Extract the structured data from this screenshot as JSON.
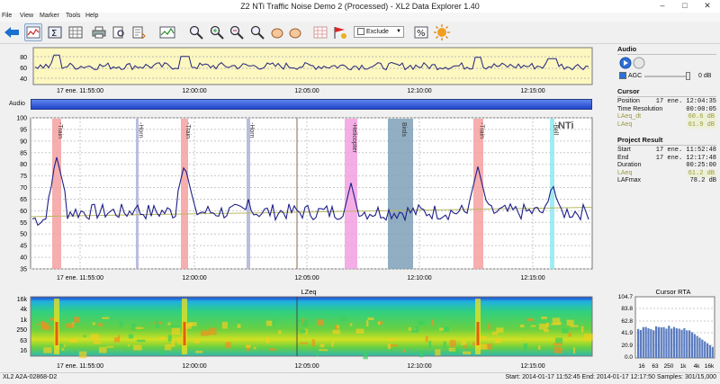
{
  "window": {
    "title": "Z2 NTi Traffic Noise Demo 2 (Processed) - XL2 Data Explorer 1.40",
    "minimize": "–",
    "maximize": "□",
    "close": "✕"
  },
  "menu": [
    "File",
    "View",
    "Marker",
    "Tools",
    "Help"
  ],
  "toolbar": {
    "icons": [
      "back-arrow-icon",
      "level-chart-icon",
      "sum-icon",
      "grid-icon",
      "print-icon",
      "print-preview-icon",
      "export-icon",
      "graph-icon",
      "zoom-icon",
      "zoom-in-icon",
      "zoom-out-icon",
      "zoom-fit-icon",
      "hand-pan-icon",
      "hand-pan-right-icon",
      "table-icon",
      "marker-add-icon",
      "percent-icon",
      "sun-icon"
    ],
    "exclude_label": "Exclude"
  },
  "overview": {
    "y_ticks": [
      "80",
      "60",
      "40"
    ],
    "x_ticks": [
      "17 ene. 11:55:00",
      "12:00:00",
      "12:05:00",
      "12:10:00",
      "12:15:00"
    ]
  },
  "audio_label": "Audio",
  "main_chart": {
    "logo": "NTi",
    "y_ticks": [
      "100",
      "95",
      "90",
      "85",
      "80",
      "75",
      "70",
      "65",
      "60",
      "55",
      "50",
      "45",
      "40",
      "35"
    ],
    "x_ticks": [
      "17 ene. 11:55:00",
      "12:00:00",
      "12:05:00",
      "12:10:00",
      "12:15:00"
    ],
    "markers": [
      {
        "label": "-Train",
        "color": "#f4a0a0"
      },
      {
        "label": "-Horn",
        "color": "#b0b0d8"
      },
      {
        "label": "-Train",
        "color": "#f4a0a0"
      },
      {
        "label": "-Horn",
        "color": "#b0b0d8"
      },
      {
        "label": "-Helicopter",
        "color": "#f2a0e0"
      },
      {
        "label": "Birds",
        "color": "#7ea0b8"
      },
      {
        "label": "-Train",
        "color": "#f4a0a0"
      },
      {
        "label": "-Bell",
        "color": "#90e8f0"
      }
    ]
  },
  "spectrogram": {
    "title": "LZeq",
    "y_ticks": [
      "16k",
      "4k",
      "1k",
      "250",
      "63",
      "16"
    ],
    "x_ticks": [
      "17 ene. 11:55:00",
      "12:00:00",
      "12:05:00",
      "12:10:00",
      "12:15:00"
    ]
  },
  "rta": {
    "title": "Cursor RTA",
    "y_ticks": [
      "104.7",
      "83.8",
      "62.8",
      "41.9",
      "20.9",
      "0.0"
    ],
    "x_ticks": [
      "16",
      "63",
      "250",
      "1k",
      "4k",
      "16k"
    ]
  },
  "side": {
    "audio_head": "Audio",
    "agc_label": "AGC",
    "gain_label": "0 dB",
    "cursor_head": "Cursor",
    "cursor_rows": [
      {
        "k": "Position",
        "v": "17 ene. 12:04:35"
      },
      {
        "k": "Time Resolution",
        "v": "00:00:05"
      },
      {
        "k": "LAeq_dt",
        "v": "60.6 dB"
      },
      {
        "k": "LAeq",
        "v": "61.9 dB"
      }
    ],
    "result_head": "Project Result",
    "result_rows": [
      {
        "k": "Start",
        "v": "17 ene. 11:52:48"
      },
      {
        "k": "End",
        "v": "17 ene. 12:17:48"
      },
      {
        "k": "Duration",
        "v": "00:25:00"
      },
      {
        "k": "LAeq",
        "v": "61.2 dB"
      },
      {
        "k": "LAFmax",
        "v": "78.2 dB"
      }
    ]
  },
  "status": {
    "left": "XL2 A2A-02868-D2",
    "right": "Start: 2014-01-17 11:52:45 End: 2014-01-17 12:17:50 Samples: 301/15,000"
  }
}
